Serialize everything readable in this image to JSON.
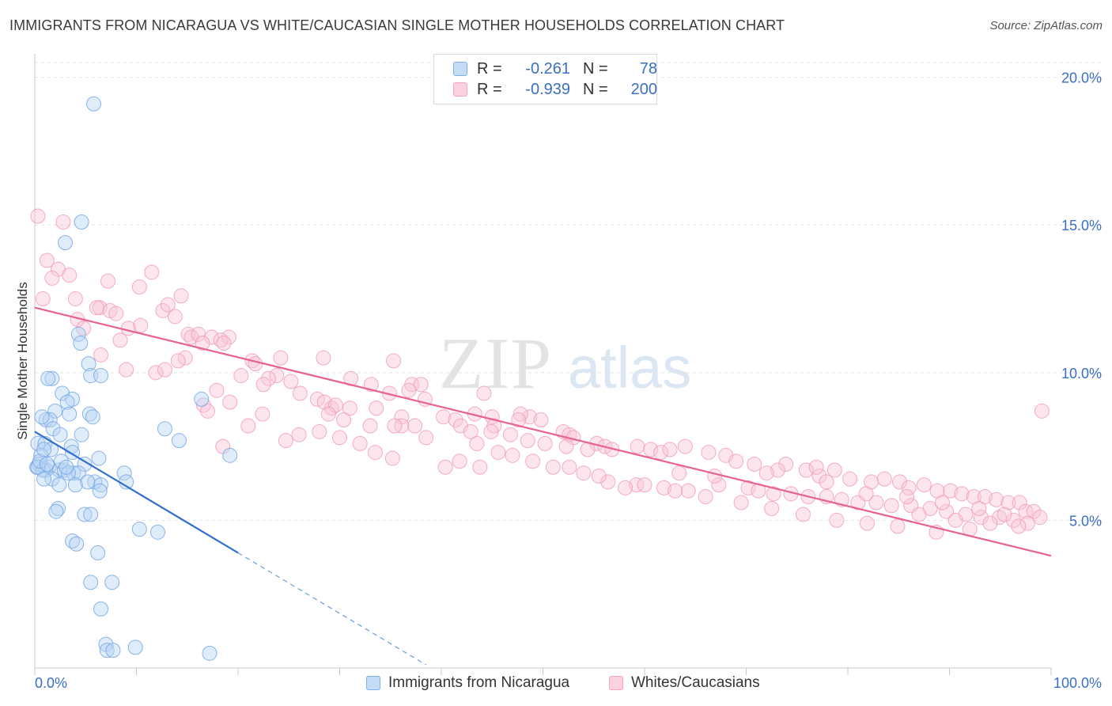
{
  "title": "IMMIGRANTS FROM NICARAGUA VS WHITE/CAUCASIAN SINGLE MOTHER HOUSEHOLDS CORRELATION CHART",
  "source": "Source: ZipAtlas.com",
  "watermark": {
    "zip": "ZIP",
    "atlas": "atlas"
  },
  "legend": {
    "rows": [
      {
        "r_label": "R =",
        "r_value": "-0.261",
        "n_label": "N =",
        "n_value": "78",
        "color": "#7fb0ea"
      },
      {
        "r_label": "R =",
        "r_value": "-0.939",
        "n_label": "N =",
        "n_value": "200",
        "color": "#f4a6bf"
      }
    ]
  },
  "bottom_legend": {
    "series1": "Immigrants from Nicaragua",
    "series2": "Whites/Caucasians"
  },
  "chart_data": {
    "type": "scatter",
    "title": "IMMIGRANTS FROM NICARAGUA VS WHITE/CAUCASIAN SINGLE MOTHER HOUSEHOLDS CORRELATION CHART",
    "xlabel": "",
    "ylabel": "Single Mother Households",
    "xlim": [
      0,
      100
    ],
    "ylim": [
      0,
      20.5
    ],
    "x_tick_labels": [
      "0.0%",
      "100.0%"
    ],
    "y_ticks": [
      5,
      10,
      15,
      20
    ],
    "y_tick_labels": [
      "5.0%",
      "10.0%",
      "15.0%",
      "20.0%"
    ],
    "grid": true,
    "legend_position": "top-center",
    "series": [
      {
        "name": "Immigrants from Nicaragua",
        "color": "#6fa3e3",
        "line_color": "#2f6fd0",
        "r": -0.261,
        "n": 78,
        "trend": {
          "x0": 0.0,
          "y0": 8.0,
          "x1": 20.0,
          "y1": 3.9,
          "dashed_to_x": 38.5
        },
        "points": [
          [
            5.8,
            19.1
          ],
          [
            4.6,
            15.1
          ],
          [
            3.0,
            14.4
          ],
          [
            4.3,
            11.3
          ],
          [
            4.5,
            11.0
          ],
          [
            5.3,
            10.3
          ],
          [
            5.5,
            9.9
          ],
          [
            6.5,
            9.9
          ],
          [
            1.7,
            9.8
          ],
          [
            1.3,
            9.8
          ],
          [
            2.7,
            9.3
          ],
          [
            3.7,
            9.1
          ],
          [
            3.2,
            9.0
          ],
          [
            2.0,
            8.7
          ],
          [
            3.4,
            8.6
          ],
          [
            5.4,
            8.6
          ],
          [
            5.7,
            8.5
          ],
          [
            1.1,
            8.4
          ],
          [
            1.5,
            8.4
          ],
          [
            0.7,
            8.5
          ],
          [
            12.8,
            8.1
          ],
          [
            16.4,
            9.1
          ],
          [
            1.8,
            8.1
          ],
          [
            2.5,
            7.9
          ],
          [
            4.6,
            7.9
          ],
          [
            0.3,
            7.6
          ],
          [
            1.0,
            7.6
          ],
          [
            3.6,
            7.5
          ],
          [
            14.2,
            7.7
          ],
          [
            1.6,
            7.4
          ],
          [
            0.6,
            7.2
          ],
          [
            3.7,
            7.3
          ],
          [
            6.3,
            7.1
          ],
          [
            19.2,
            7.2
          ],
          [
            0.4,
            6.9
          ],
          [
            1.4,
            6.8
          ],
          [
            0.2,
            6.8
          ],
          [
            1.1,
            6.7
          ],
          [
            2.4,
            6.7
          ],
          [
            2.9,
            6.7
          ],
          [
            0.8,
            6.7
          ],
          [
            4.9,
            6.9
          ],
          [
            0.3,
            6.8
          ],
          [
            3.8,
            6.6
          ],
          [
            4.3,
            6.6
          ],
          [
            3.3,
            6.6
          ],
          [
            8.8,
            6.6
          ],
          [
            1.7,
            6.4
          ],
          [
            0.9,
            6.4
          ],
          [
            5.9,
            6.3
          ],
          [
            6.5,
            6.2
          ],
          [
            9.0,
            6.3
          ],
          [
            2.4,
            6.2
          ],
          [
            4.0,
            6.2
          ],
          [
            5.2,
            6.3
          ],
          [
            6.4,
            6.0
          ],
          [
            2.3,
            5.4
          ],
          [
            2.1,
            5.3
          ],
          [
            4.9,
            5.2
          ],
          [
            5.5,
            5.2
          ],
          [
            10.3,
            4.7
          ],
          [
            12.1,
            4.6
          ],
          [
            3.7,
            4.3
          ],
          [
            4.1,
            4.2
          ],
          [
            6.2,
            3.9
          ],
          [
            5.5,
            2.9
          ],
          [
            7.6,
            2.9
          ],
          [
            6.5,
            2.0
          ],
          [
            7.0,
            0.8
          ],
          [
            7.1,
            0.6
          ],
          [
            7.7,
            0.6
          ],
          [
            9.9,
            0.7
          ],
          [
            17.2,
            0.5
          ],
          [
            0.5,
            7.0
          ],
          [
            1.2,
            6.9
          ],
          [
            2.6,
            7.0
          ],
          [
            3.1,
            6.8
          ],
          [
            0.9,
            7.4
          ]
        ]
      },
      {
        "name": "Whites/Caucasians",
        "color": "#f4a6bf",
        "line_color": "#e8628f",
        "r": -0.939,
        "n": 200,
        "trend": {
          "x0": 0.0,
          "y0": 12.2,
          "x1": 100.0,
          "y1": 3.8
        },
        "points": [
          [
            0.3,
            15.3
          ],
          [
            2.8,
            15.1
          ],
          [
            1.2,
            13.8
          ],
          [
            2.3,
            13.5
          ],
          [
            1.7,
            13.2
          ],
          [
            3.4,
            13.3
          ],
          [
            11.5,
            13.4
          ],
          [
            0.8,
            12.5
          ],
          [
            4.0,
            12.5
          ],
          [
            7.2,
            13.1
          ],
          [
            10.3,
            12.9
          ],
          [
            14.4,
            12.6
          ],
          [
            6.4,
            12.2
          ],
          [
            7.4,
            12.1
          ],
          [
            6.1,
            12.2
          ],
          [
            12.6,
            12.1
          ],
          [
            13.1,
            12.3
          ],
          [
            8.0,
            12.0
          ],
          [
            13.8,
            11.9
          ],
          [
            4.2,
            11.8
          ],
          [
            4.8,
            11.5
          ],
          [
            10.4,
            11.6
          ],
          [
            9.2,
            11.5
          ],
          [
            15.1,
            11.3
          ],
          [
            15.4,
            11.2
          ],
          [
            16.1,
            11.3
          ],
          [
            17.4,
            11.2
          ],
          [
            19.1,
            11.2
          ],
          [
            8.4,
            11.1
          ],
          [
            16.5,
            11.0
          ],
          [
            18.3,
            11.1
          ],
          [
            18.6,
            11.0
          ],
          [
            6.5,
            10.6
          ],
          [
            14.8,
            10.5
          ],
          [
            14.1,
            10.4
          ],
          [
            21.4,
            10.4
          ],
          [
            21.7,
            10.3
          ],
          [
            24.2,
            10.5
          ],
          [
            28.4,
            10.5
          ],
          [
            35.3,
            10.4
          ],
          [
            9.0,
            10.1
          ],
          [
            11.9,
            10.0
          ],
          [
            12.8,
            10.1
          ],
          [
            20.3,
            9.9
          ],
          [
            23.8,
            9.9
          ],
          [
            23.0,
            9.8
          ],
          [
            25.2,
            9.7
          ],
          [
            22.5,
            9.6
          ],
          [
            31.1,
            9.8
          ],
          [
            33.1,
            9.6
          ],
          [
            37.1,
            9.6
          ],
          [
            38.0,
            9.6
          ],
          [
            36.8,
            9.4
          ],
          [
            26.1,
            9.3
          ],
          [
            19.2,
            9.0
          ],
          [
            17.9,
            9.4
          ],
          [
            27.8,
            9.1
          ],
          [
            29.2,
            8.8
          ],
          [
            34.9,
            9.3
          ],
          [
            28.5,
            9.0
          ],
          [
            29.6,
            8.9
          ],
          [
            31.0,
            8.8
          ],
          [
            33.6,
            8.8
          ],
          [
            38.4,
            9.1
          ],
          [
            44.2,
            9.3
          ],
          [
            16.6,
            8.9
          ],
          [
            17.0,
            8.7
          ],
          [
            22.4,
            8.6
          ],
          [
            28.9,
            8.6
          ],
          [
            30.4,
            8.4
          ],
          [
            40.2,
            8.5
          ],
          [
            48.7,
            8.5
          ],
          [
            43.3,
            8.6
          ],
          [
            47.8,
            8.6
          ],
          [
            36.1,
            8.5
          ],
          [
            41.4,
            8.4
          ],
          [
            45.0,
            8.5
          ],
          [
            49.8,
            8.4
          ],
          [
            47.6,
            8.4
          ],
          [
            45.2,
            8.2
          ],
          [
            41.9,
            8.2
          ],
          [
            36.1,
            8.2
          ],
          [
            37.4,
            8.2
          ],
          [
            35.4,
            8.2
          ],
          [
            42.9,
            8.0
          ],
          [
            44.9,
            8.0
          ],
          [
            46.8,
            7.9
          ],
          [
            52.0,
            8.0
          ],
          [
            52.6,
            7.9
          ],
          [
            53.0,
            7.8
          ],
          [
            48.5,
            7.7
          ],
          [
            50.2,
            7.6
          ],
          [
            55.3,
            7.6
          ],
          [
            56.1,
            7.5
          ],
          [
            54.4,
            7.4
          ],
          [
            52.3,
            7.5
          ],
          [
            56.8,
            7.4
          ],
          [
            59.3,
            7.5
          ],
          [
            60.6,
            7.4
          ],
          [
            61.6,
            7.3
          ],
          [
            62.5,
            7.4
          ],
          [
            64.0,
            7.5
          ],
          [
            66.3,
            7.3
          ],
          [
            68.0,
            7.2
          ],
          [
            69.0,
            7.0
          ],
          [
            70.8,
            6.9
          ],
          [
            73.9,
            6.9
          ],
          [
            73.1,
            6.7
          ],
          [
            72.0,
            6.6
          ],
          [
            75.9,
            6.7
          ],
          [
            77.2,
            6.5
          ],
          [
            76.9,
            6.8
          ],
          [
            78.7,
            6.7
          ],
          [
            80.2,
            6.4
          ],
          [
            82.3,
            6.3
          ],
          [
            83.6,
            6.4
          ],
          [
            85.1,
            6.3
          ],
          [
            86.0,
            6.1
          ],
          [
            87.5,
            6.2
          ],
          [
            88.8,
            6.0
          ],
          [
            90.1,
            6.0
          ],
          [
            91.2,
            5.9
          ],
          [
            92.4,
            5.8
          ],
          [
            93.5,
            5.8
          ],
          [
            94.6,
            5.7
          ],
          [
            95.8,
            5.6
          ],
          [
            96.9,
            5.6
          ],
          [
            97.5,
            5.3
          ],
          [
            98.3,
            5.3
          ],
          [
            99.1,
            8.7
          ],
          [
            26.0,
            7.9
          ],
          [
            18.5,
            7.5
          ],
          [
            33.5,
            7.3
          ],
          [
            35.2,
            7.1
          ],
          [
            41.8,
            7.0
          ],
          [
            43.8,
            6.8
          ],
          [
            52.6,
            6.8
          ],
          [
            56.4,
            6.3
          ],
          [
            59.2,
            6.2
          ],
          [
            61.9,
            6.1
          ],
          [
            64.3,
            6.0
          ],
          [
            67.3,
            6.2
          ],
          [
            70.2,
            6.1
          ],
          [
            71.2,
            6.0
          ],
          [
            72.7,
            5.9
          ],
          [
            74.4,
            5.9
          ],
          [
            76.1,
            5.8
          ],
          [
            77.9,
            5.8
          ],
          [
            79.4,
            5.7
          ],
          [
            81.0,
            5.6
          ],
          [
            82.8,
            5.6
          ],
          [
            84.3,
            5.5
          ],
          [
            86.2,
            5.5
          ],
          [
            88.1,
            5.4
          ],
          [
            89.7,
            5.3
          ],
          [
            91.6,
            5.2
          ],
          [
            93.1,
            5.1
          ],
          [
            94.9,
            5.1
          ],
          [
            96.3,
            5.0
          ],
          [
            97.7,
            4.9
          ],
          [
            40.4,
            6.8
          ],
          [
            63.4,
            6.6
          ],
          [
            66.9,
            6.5
          ],
          [
            77.9,
            6.3
          ],
          [
            81.8,
            5.9
          ],
          [
            85.8,
            5.8
          ],
          [
            89.3,
            5.6
          ],
          [
            92.9,
            5.4
          ],
          [
            95.4,
            5.2
          ],
          [
            98.9,
            5.1
          ],
          [
            87.0,
            5.2
          ],
          [
            90.6,
            5.0
          ],
          [
            94.0,
            4.9
          ],
          [
            96.8,
            4.8
          ],
          [
            92.0,
            4.7
          ],
          [
            88.7,
            4.6
          ],
          [
            84.9,
            4.8
          ],
          [
            81.9,
            4.9
          ],
          [
            78.9,
            5.0
          ],
          [
            75.6,
            5.2
          ],
          [
            72.5,
            5.4
          ],
          [
            69.5,
            5.6
          ],
          [
            66.0,
            5.8
          ],
          [
            63.0,
            6.0
          ],
          [
            60.0,
            6.2
          ],
          [
            58.1,
            6.1
          ],
          [
            55.5,
            6.5
          ],
          [
            54.0,
            6.6
          ],
          [
            51.0,
            6.8
          ],
          [
            49.0,
            7.0
          ],
          [
            47.0,
            7.2
          ],
          [
            45.6,
            7.3
          ],
          [
            32.0,
            7.6
          ],
          [
            30.0,
            7.8
          ],
          [
            24.7,
            7.7
          ],
          [
            21.0,
            8.2
          ],
          [
            28.0,
            8.0
          ],
          [
            33.0,
            8.2
          ],
          [
            38.5,
            7.8
          ],
          [
            43.5,
            7.6
          ]
        ]
      }
    ]
  }
}
